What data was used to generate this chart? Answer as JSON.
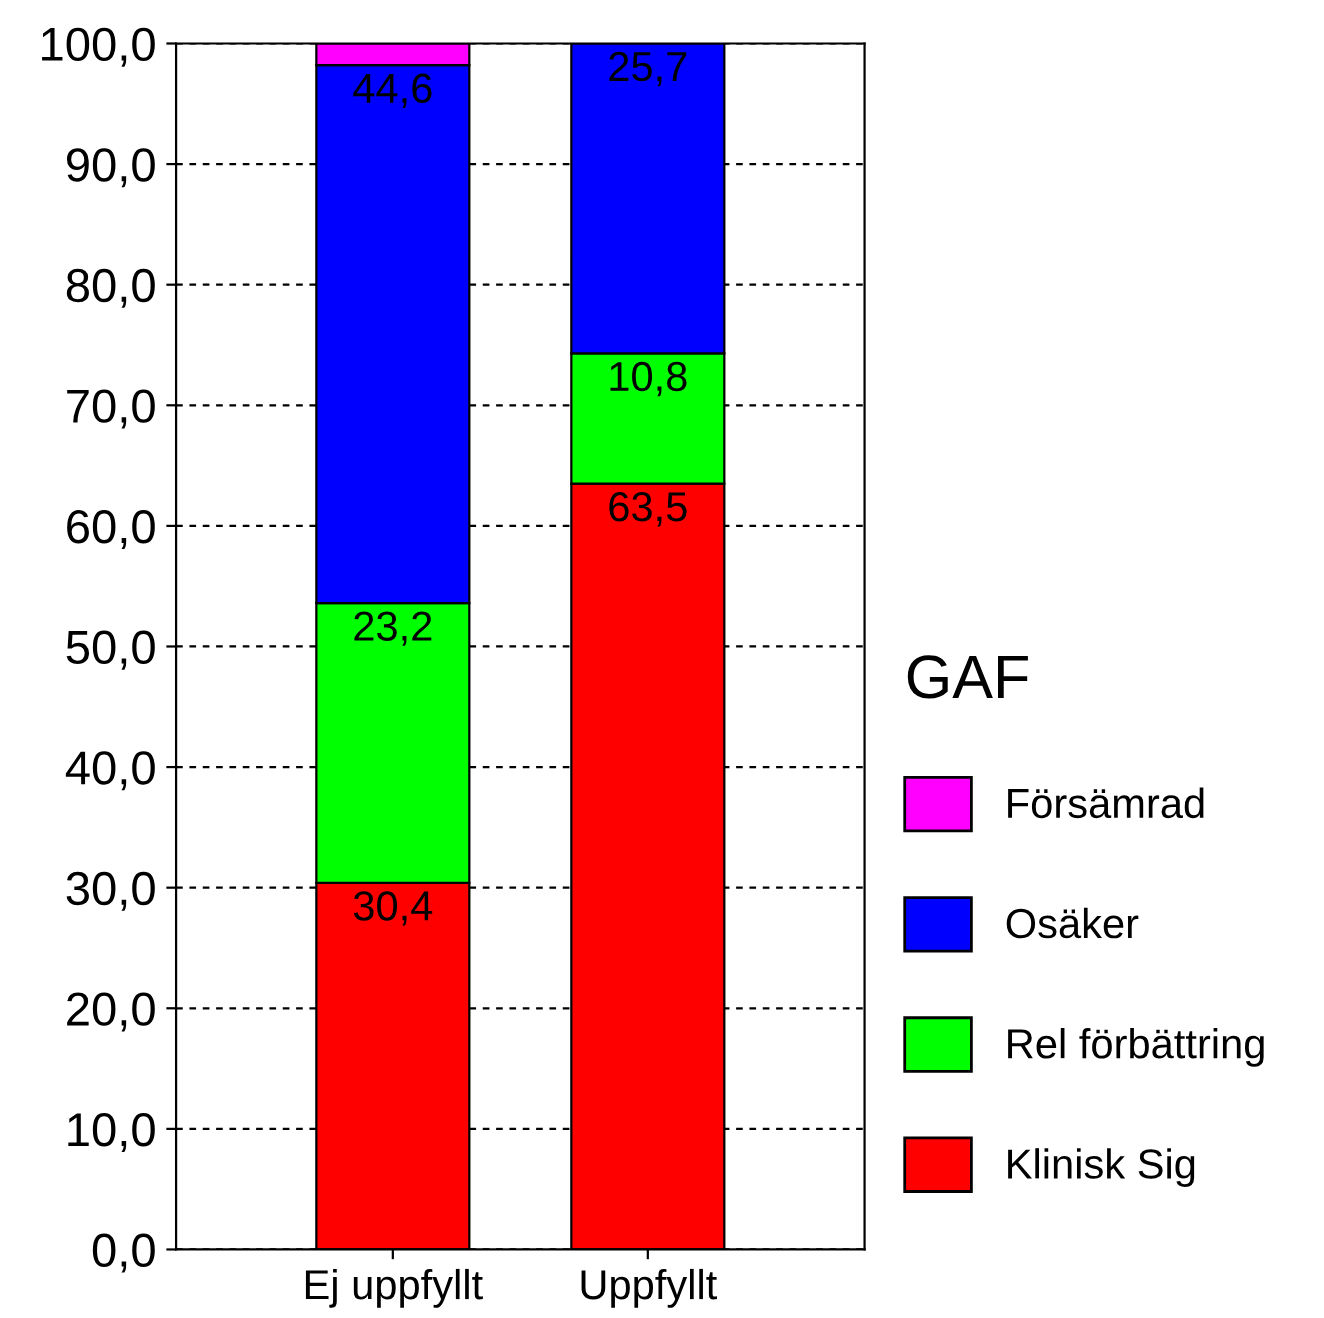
{
  "chart_data": {
    "type": "bar",
    "stacked": true,
    "categories": [
      "Ej uppfyllt",
      "Uppfyllt"
    ],
    "series": [
      {
        "name": "Klinisk Sig",
        "color": "#ff0000",
        "values": [
          30.4,
          63.5
        ],
        "value_labels": [
          "30,4",
          "63,5"
        ]
      },
      {
        "name": "Rel förbättring",
        "color": "#00ff00",
        "values": [
          23.2,
          10.8
        ],
        "value_labels": [
          "23,2",
          "10,8"
        ]
      },
      {
        "name": "Osäker",
        "color": "#0000ff",
        "values": [
          44.6,
          25.7
        ],
        "value_labels": [
          "44,6",
          "25,7"
        ]
      },
      {
        "name": "Försämrad",
        "color": "#ff00ff",
        "values": [
          1.8,
          null
        ],
        "value_labels": [
          null,
          null
        ]
      }
    ],
    "legend_title": "GAF",
    "legend": "right",
    "ylim": [
      0,
      100
    ],
    "yticks": [
      {
        "value": 0,
        "label": "0,0"
      },
      {
        "value": 10,
        "label": "10,0"
      },
      {
        "value": 20,
        "label": "20,0"
      },
      {
        "value": 30,
        "label": "30,0"
      },
      {
        "value": 40,
        "label": "40,0"
      },
      {
        "value": 50,
        "label": "50,0"
      },
      {
        "value": 60,
        "label": "60,0"
      },
      {
        "value": 70,
        "label": "70,0"
      },
      {
        "value": 80,
        "label": "80,0"
      },
      {
        "value": 90,
        "label": "90,0"
      },
      {
        "value": 100,
        "label": "100,0"
      }
    ],
    "grid": "y"
  }
}
